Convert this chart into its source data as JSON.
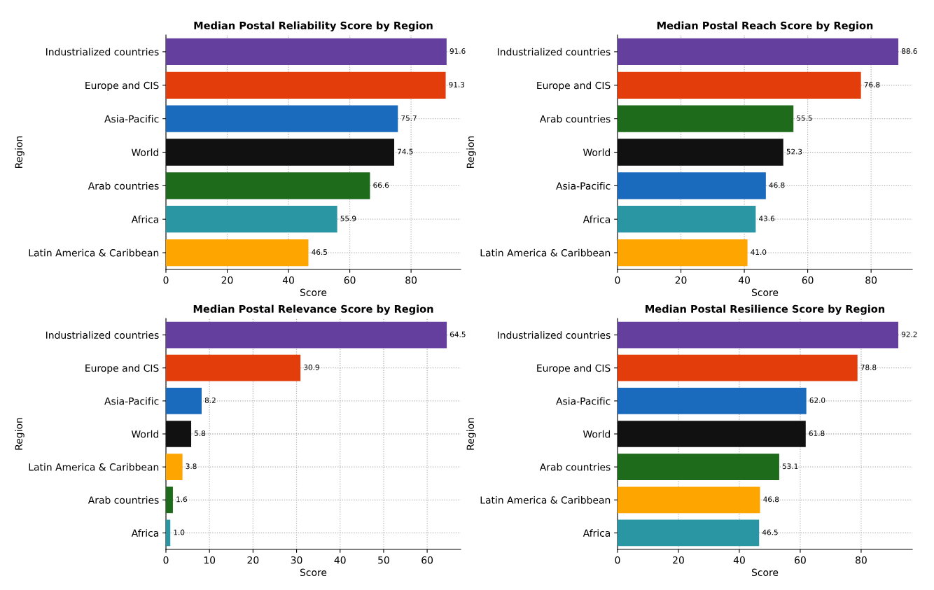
{
  "chart_data": [
    {
      "type": "bar",
      "orientation": "horizontal",
      "title": "Median Postal Reliability Score by Region",
      "xlabel": "Score",
      "ylabel": "Region",
      "categories": [
        "Industrialized countries",
        "Europe and CIS",
        "Asia-Pacific",
        "World",
        "Arab countries",
        "Africa",
        "Latin America & Caribbean"
      ],
      "values": [
        91.6,
        91.3,
        75.7,
        74.5,
        66.6,
        55.9,
        46.5
      ],
      "value_labels": [
        "91.6",
        "91.3",
        "75.7",
        "74.5",
        "66.6",
        "55.9",
        "46.5"
      ],
      "colors": [
        "#653f9e",
        "#e33d0b",
        "#1a6bbd",
        "#111111",
        "#1f6b1c",
        "#2a96a3",
        "#ffa500"
      ],
      "xlim": [
        0,
        96.2
      ],
      "xticks": [
        0,
        20,
        40,
        60,
        80
      ],
      "grid": true
    },
    {
      "type": "bar",
      "orientation": "horizontal",
      "title": "Median Postal Reach Score by Region",
      "xlabel": "Score",
      "ylabel": "Region",
      "categories": [
        "Industrialized countries",
        "Europe and CIS",
        "Arab countries",
        "World",
        "Asia-Pacific",
        "Africa",
        "Latin America & Caribbean"
      ],
      "values": [
        88.6,
        76.8,
        55.5,
        52.3,
        46.8,
        43.6,
        41
      ],
      "value_labels": [
        "88.6",
        "76.8",
        "55.5",
        "52.3",
        "46.8",
        "43.6",
        "41.0"
      ],
      "colors": [
        "#653f9e",
        "#e33d0b",
        "#1f6b1c",
        "#111111",
        "#1a6bbd",
        "#2a96a3",
        "#ffa500"
      ],
      "xlim": [
        0,
        93.0
      ],
      "xticks": [
        0,
        20,
        40,
        60,
        80
      ],
      "grid": true
    },
    {
      "type": "bar",
      "orientation": "horizontal",
      "title": "Median Postal Relevance Score by Region",
      "xlabel": "Score",
      "ylabel": "Region",
      "categories": [
        "Industrialized countries",
        "Europe and CIS",
        "Asia-Pacific",
        "World",
        "Latin America & Caribbean",
        "Arab countries",
        "Africa"
      ],
      "values": [
        64.5,
        30.9,
        8.2,
        5.8,
        3.8,
        1.6,
        1
      ],
      "value_labels": [
        "64.5",
        "30.9",
        "8.2",
        "5.8",
        "3.8",
        "1.6",
        "1.0"
      ],
      "colors": [
        "#653f9e",
        "#e33d0b",
        "#1a6bbd",
        "#111111",
        "#ffa500",
        "#1f6b1c",
        "#2a96a3"
      ],
      "xlim": [
        0,
        67.7
      ],
      "xticks": [
        0,
        10,
        20,
        30,
        40,
        50,
        60
      ],
      "grid": true
    },
    {
      "type": "bar",
      "orientation": "horizontal",
      "title": "Median Postal Resilience Score by Region",
      "xlabel": "Score",
      "ylabel": "Region",
      "categories": [
        "Industrialized countries",
        "Europe and CIS",
        "Asia-Pacific",
        "World",
        "Arab countries",
        "Latin America & Caribbean",
        "Africa"
      ],
      "values": [
        92.2,
        78.8,
        62,
        61.8,
        53.1,
        46.8,
        46.5
      ],
      "value_labels": [
        "92.2",
        "78.8",
        "62.0",
        "61.8",
        "53.1",
        "46.8",
        "46.5"
      ],
      "colors": [
        "#653f9e",
        "#e33d0b",
        "#1a6bbd",
        "#111111",
        "#1f6b1c",
        "#ffa500",
        "#2a96a3"
      ],
      "xlim": [
        0,
        96.8
      ],
      "xticks": [
        0,
        20,
        40,
        60,
        80
      ],
      "grid": true
    }
  ]
}
